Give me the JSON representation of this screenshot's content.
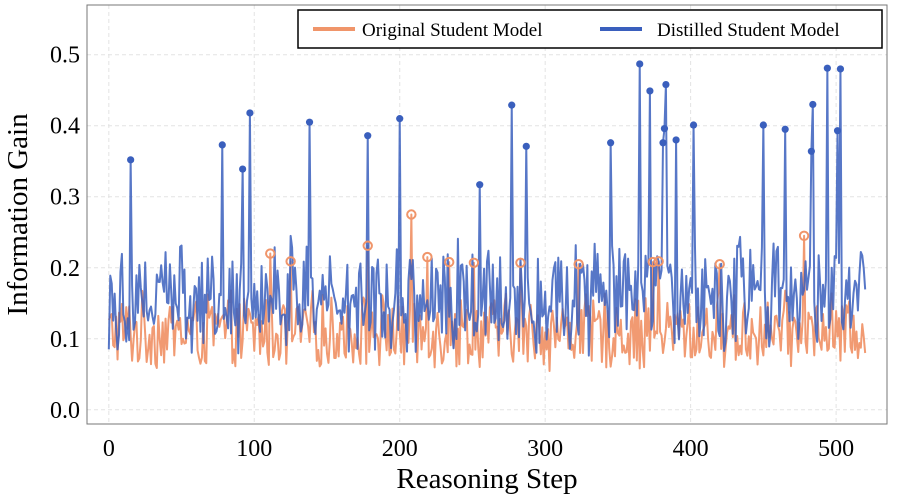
{
  "chart_data": {
    "type": "line",
    "title": "",
    "xlabel": "Reasoning Step",
    "ylabel": "Information Gain",
    "xlim": [
      -15,
      535
    ],
    "ylim": [
      -0.02,
      0.57
    ],
    "xticks": [
      0,
      100,
      200,
      300,
      400,
      500
    ],
    "xtick_labels": [
      "0",
      "100",
      "200",
      "300",
      "400",
      "500"
    ],
    "yticks": [
      0.0,
      0.1,
      0.2,
      0.3,
      0.4,
      0.5
    ],
    "ytick_labels": [
      "0.0",
      "0.1",
      "0.2",
      "0.3",
      "0.4",
      "0.5"
    ],
    "grid": true,
    "legend_position": "top-right",
    "n_steps": 521,
    "series": [
      {
        "name": "Original Student Model",
        "color": "#f0956a",
        "base_mean": 0.11,
        "base_spread": 0.06,
        "peaks": [
          {
            "x": 111,
            "y": 0.22
          },
          {
            "x": 125,
            "y": 0.209
          },
          {
            "x": 178,
            "y": 0.231
          },
          {
            "x": 208,
            "y": 0.275
          },
          {
            "x": 219,
            "y": 0.215
          },
          {
            "x": 234,
            "y": 0.208
          },
          {
            "x": 251,
            "y": 0.207
          },
          {
            "x": 283,
            "y": 0.207
          },
          {
            "x": 323,
            "y": 0.205
          },
          {
            "x": 374,
            "y": 0.208
          },
          {
            "x": 378,
            "y": 0.209
          },
          {
            "x": 420,
            "y": 0.205
          },
          {
            "x": 478,
            "y": 0.245
          }
        ]
      },
      {
        "name": "Distilled Student Model",
        "color": "#3a5fbd",
        "base_mean": 0.16,
        "base_spread": 0.09,
        "peaks": [
          {
            "x": 15,
            "y": 0.352
          },
          {
            "x": 78,
            "y": 0.373
          },
          {
            "x": 92,
            "y": 0.339
          },
          {
            "x": 97,
            "y": 0.418
          },
          {
            "x": 138,
            "y": 0.405
          },
          {
            "x": 178,
            "y": 0.386
          },
          {
            "x": 200,
            "y": 0.41
          },
          {
            "x": 255,
            "y": 0.317
          },
          {
            "x": 277,
            "y": 0.429
          },
          {
            "x": 287,
            "y": 0.371
          },
          {
            "x": 345,
            "y": 0.376
          },
          {
            "x": 365,
            "y": 0.487
          },
          {
            "x": 372,
            "y": 0.449
          },
          {
            "x": 381,
            "y": 0.376
          },
          {
            "x": 382,
            "y": 0.396
          },
          {
            "x": 383,
            "y": 0.458
          },
          {
            "x": 390,
            "y": 0.38
          },
          {
            "x": 402,
            "y": 0.401
          },
          {
            "x": 450,
            "y": 0.401
          },
          {
            "x": 465,
            "y": 0.395
          },
          {
            "x": 483,
            "y": 0.364
          },
          {
            "x": 484,
            "y": 0.43
          },
          {
            "x": 494,
            "y": 0.481
          },
          {
            "x": 501,
            "y": 0.393
          },
          {
            "x": 503,
            "y": 0.48
          }
        ]
      }
    ]
  }
}
